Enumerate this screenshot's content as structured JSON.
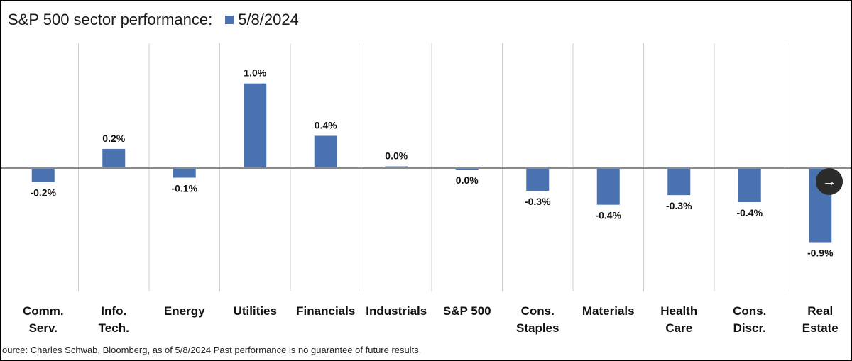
{
  "header": {
    "title": "S&P 500 sector performance:",
    "legend_label": "5/8/2024"
  },
  "chart_data": {
    "type": "bar",
    "categories": [
      [
        "Comm.",
        "Serv."
      ],
      [
        "Info.",
        "Tech."
      ],
      [
        "Energy"
      ],
      [
        "Utilities"
      ],
      [
        "Financials"
      ],
      [
        "Industrials"
      ],
      [
        "S&P 500"
      ],
      [
        "Cons.",
        "Staples"
      ],
      [
        "Materials"
      ],
      [
        "Health",
        "Care"
      ],
      [
        "Cons.",
        "Discr."
      ],
      [
        "Real",
        "Estate"
      ]
    ],
    "series": [
      {
        "name": "5/8/2024",
        "values": [
          -0.16,
          0.22,
          -0.11,
          0.97,
          0.37,
          0.02,
          -0.01,
          -0.26,
          -0.42,
          -0.31,
          -0.39,
          -0.85
        ],
        "labels": [
          "-0.2%",
          "0.2%",
          "-0.1%",
          "1.0%",
          "0.4%",
          "0.0%",
          "0.0%",
          "-0.3%",
          "-0.4%",
          "-0.3%",
          "-0.4%",
          "-0.9%"
        ]
      }
    ],
    "bar_color": "#4a72b0",
    "ylim": [
      -1.4,
      1.4
    ],
    "grid": "vertical separators"
  },
  "footer": {
    "source": "ource: Charles Schwab, Bloomberg, as of 5/8/2024 Past performance is no guarantee of future results."
  },
  "nav": {
    "next_icon": "→"
  }
}
